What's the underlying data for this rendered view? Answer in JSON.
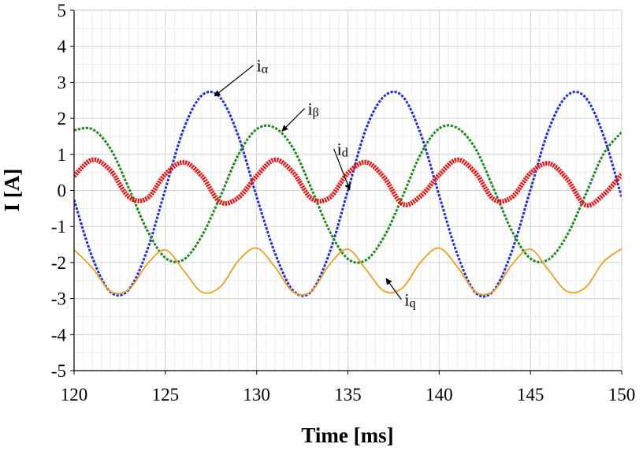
{
  "chart_data": {
    "type": "line",
    "xlabel": "Time [ms]",
    "ylabel": "I [A]",
    "xlim": [
      120,
      150
    ],
    "ylim": [
      -5,
      5
    ],
    "x_ticks": [
      "120",
      "125",
      "130",
      "135",
      "140",
      "145",
      "150"
    ],
    "y_ticks": [
      "5",
      "4",
      "3",
      "2",
      "1",
      "0",
      "-1",
      "-2",
      "-3",
      "-4",
      "-5"
    ],
    "grid": true,
    "legend": "none",
    "series": [
      {
        "id": "i_alpha",
        "color": "#1f2fdc",
        "style": "dashed",
        "amplitude": 2.78,
        "offset": -0.1,
        "period_ms": 10,
        "peak_x": [
          127.3,
          137.3,
          147.3
        ],
        "trough_x": [
          122.3,
          132.3,
          142.3
        ],
        "x": [
          120,
          121,
          122,
          123,
          124,
          125,
          126,
          127,
          128,
          129,
          130,
          131,
          132,
          133,
          134,
          135,
          136,
          137,
          138,
          139,
          140,
          141,
          142,
          143,
          144,
          145,
          146,
          147,
          148,
          149,
          150
        ],
        "values": [
          -0.26,
          -1.86,
          -2.82,
          -2.75,
          -1.67,
          0.03,
          1.7,
          2.64,
          2.58,
          1.51,
          -0.17,
          -1.73,
          -2.78,
          -2.8,
          -1.72,
          0.0,
          1.72,
          2.62,
          2.61,
          1.55,
          -0.14,
          -1.78,
          -2.84,
          -2.77,
          -1.66,
          0.02,
          1.69,
          2.63,
          2.59,
          1.53,
          -0.2
        ]
      },
      {
        "id": "i_beta",
        "color": "#1e8a1e",
        "style": "dashed",
        "amplitude": 1.87,
        "offset": -0.1,
        "period_ms": 10,
        "peak_x": [
          120.7,
          130.7,
          140.7
        ],
        "trough_x": [
          125.7,
          135.7,
          145.7
        ],
        "x": [
          120,
          121,
          122,
          123,
          124,
          125,
          126,
          127,
          128,
          129,
          130,
          131,
          132,
          133,
          134,
          135,
          136,
          137,
          138,
          139,
          140,
          141,
          142,
          143,
          144,
          145,
          146,
          147,
          148,
          149,
          150
        ],
        "values": [
          1.67,
          1.7,
          1.15,
          0.06,
          -1.1,
          -1.87,
          -1.92,
          -1.26,
          -0.18,
          0.99,
          1.7,
          1.74,
          1.17,
          0.05,
          -1.13,
          -1.9,
          -1.93,
          -1.27,
          -0.16,
          1.02,
          1.72,
          1.73,
          1.15,
          0.03,
          -1.14,
          -1.89,
          -1.91,
          -1.25,
          -0.14,
          1.01,
          1.62
        ]
      },
      {
        "id": "i_d",
        "color": "#ee1111",
        "style": "thick-marker",
        "amplitude": 0.58,
        "offset": 0.27,
        "period_ms": 5,
        "peak_x": [
          121.0,
          126.0,
          131.0,
          136.0,
          141.0,
          146.0
        ],
        "trough_x": [
          123.5,
          128.5,
          133.5,
          138.5,
          143.5,
          148.5
        ],
        "x": [
          120,
          121,
          122,
          123,
          124,
          125,
          126,
          127,
          128,
          129,
          130,
          131,
          132,
          133,
          134,
          135,
          136,
          137,
          138,
          139,
          140,
          141,
          142,
          143,
          144,
          145,
          146,
          147,
          148,
          149,
          150
        ],
        "values": [
          0.4,
          0.85,
          0.55,
          -0.18,
          -0.22,
          0.45,
          0.78,
          0.4,
          -0.32,
          -0.2,
          0.4,
          0.85,
          0.5,
          -0.22,
          -0.2,
          0.48,
          0.78,
          0.35,
          -0.38,
          -0.15,
          0.43,
          0.85,
          0.48,
          -0.25,
          -0.18,
          0.48,
          0.75,
          0.32,
          -0.4,
          -0.12,
          0.45
        ]
      },
      {
        "id": "i_q",
        "color": "#f0a020",
        "style": "solid",
        "amplitude": 0.62,
        "offset": -2.23,
        "period_ms": 5,
        "peak_x": [
          119.8,
          124.8,
          129.8,
          134.8,
          139.8,
          144.8,
          149.8
        ],
        "trough_x": [
          122.3,
          127.3,
          132.3,
          137.3,
          142.3,
          147.3
        ],
        "x": [
          120,
          121,
          122,
          123,
          124,
          125,
          126,
          127,
          128,
          129,
          130,
          131,
          132,
          133,
          134,
          135,
          136,
          137,
          138,
          139,
          140,
          141,
          142,
          143,
          144,
          145,
          146,
          147,
          148,
          149,
          150
        ],
        "values": [
          -1.65,
          -2.15,
          -2.8,
          -2.75,
          -2.05,
          -1.65,
          -2.22,
          -2.82,
          -2.68,
          -1.95,
          -1.6,
          -2.12,
          -2.82,
          -2.8,
          -2.05,
          -1.63,
          -2.2,
          -2.8,
          -2.7,
          -1.98,
          -1.6,
          -2.12,
          -2.82,
          -2.78,
          -2.05,
          -1.63,
          -2.22,
          -2.8,
          -2.7,
          -1.98,
          -1.62
        ]
      }
    ],
    "annotations": [
      {
        "series": "i_alpha",
        "main": "i",
        "sub": "α",
        "text_at": [
          130.0,
          3.3
        ],
        "arrow_to": [
          127.7,
          2.62
        ]
      },
      {
        "series": "i_beta",
        "main": "i",
        "sub": "β",
        "text_at": [
          132.8,
          2.1
        ],
        "arrow_to": [
          131.4,
          1.65
        ]
      },
      {
        "series": "i_d",
        "main": "i",
        "sub": "d",
        "text_at": [
          134.4,
          0.98
        ],
        "arrow_to": [
          135.1,
          0.02
        ]
      },
      {
        "series": "i_q",
        "main": "i",
        "sub": "q",
        "text_at": [
          138.1,
          -3.2
        ],
        "arrow_to": [
          137.1,
          -2.45
        ]
      }
    ]
  }
}
